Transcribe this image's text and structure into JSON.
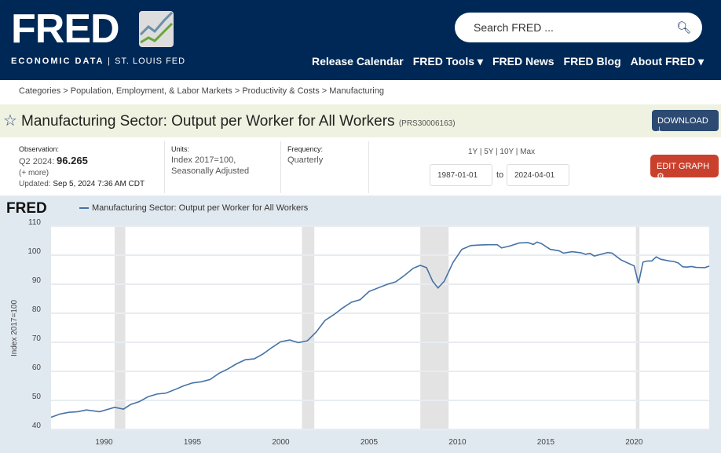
{
  "header": {
    "logo": "FRED",
    "tagline_left": "ECONOMIC DATA",
    "tagline_sep": "|",
    "tagline_right": "ST. LOUIS FED",
    "search_placeholder": "Search FRED ...",
    "nav": [
      "Release Calendar",
      "FRED Tools ▾",
      "FRED News",
      "FRED Blog",
      "About FRED ▾"
    ]
  },
  "breadcrumb": "Categories > Population, Employment, & Labor Markets > Productivity & Costs > Manufacturing",
  "series": {
    "title": "Manufacturing Sector: Output per Worker for All Workers",
    "id": "(PRS30006163)",
    "download": "DOWNLOAD ⤓",
    "edit_graph": "EDIT GRAPH ⚙"
  },
  "meta": {
    "obs_label": "Observation:",
    "obs_period": "Q2 2024:",
    "obs_value": "96.265",
    "more": "(+ more)",
    "updated_label": "Updated:",
    "updated": "Sep 5, 2024 7:36 AM CDT",
    "units_label": "Units:",
    "units1": "Index 2017=100,",
    "units2": "Seasonally Adjusted",
    "freq_label": "Frequency:",
    "freq": "Quarterly",
    "range_links": "1Y | 5Y | 10Y | Max",
    "start": "1987-01-01",
    "to": "to",
    "end": "2024-04-01"
  },
  "chart_data": {
    "type": "line",
    "legend": "Manufacturing Sector: Output per Worker for All Workers",
    "ylabel": "Index 2017=100",
    "xlim": [
      1987,
      2024.25
    ],
    "ylim": [
      40,
      110
    ],
    "yticks": [
      40,
      50,
      60,
      70,
      80,
      90,
      100,
      110
    ],
    "xticks": [
      1990,
      1995,
      2000,
      2005,
      2010,
      2015,
      2020
    ],
    "grid": true,
    "line_color": "#4572a7",
    "recessions": [
      [
        1990.6,
        1991.2
      ],
      [
        2001.2,
        2001.9
      ],
      [
        2007.9,
        2009.5
      ],
      [
        2020.1,
        2020.3
      ]
    ],
    "points": [
      [
        1987,
        44.2
      ],
      [
        1987.5,
        45.3
      ],
      [
        1988,
        45.9
      ],
      [
        1988.5,
        46.1
      ],
      [
        1989,
        46.7
      ],
      [
        1989.75,
        46.1
      ],
      [
        1990.25,
        47.0
      ],
      [
        1990.6,
        47.6
      ],
      [
        1991.1,
        47.0
      ],
      [
        1991.5,
        48.6
      ],
      [
        1992,
        49.6
      ],
      [
        1992.5,
        51.3
      ],
      [
        1993,
        52.2
      ],
      [
        1993.5,
        52.5
      ],
      [
        1994,
        53.7
      ],
      [
        1994.5,
        55.0
      ],
      [
        1995,
        56.0
      ],
      [
        1995.5,
        56.4
      ],
      [
        1996,
        57.2
      ],
      [
        1996.5,
        59.3
      ],
      [
        1997,
        60.8
      ],
      [
        1997.5,
        62.6
      ],
      [
        1998,
        64.0
      ],
      [
        1998.5,
        64.3
      ],
      [
        1999,
        66.0
      ],
      [
        1999.5,
        68.2
      ],
      [
        2000,
        70.2
      ],
      [
        2000.5,
        70.8
      ],
      [
        2001,
        69.9
      ],
      [
        2001.5,
        70.5
      ],
      [
        2002,
        73.5
      ],
      [
        2002.5,
        77.5
      ],
      [
        2003,
        79.5
      ],
      [
        2003.5,
        81.8
      ],
      [
        2004,
        83.8
      ],
      [
        2004.5,
        84.7
      ],
      [
        2005,
        87.5
      ],
      [
        2005.5,
        88.7
      ],
      [
        2006,
        89.9
      ],
      [
        2006.5,
        90.8
      ],
      [
        2007,
        93.0
      ],
      [
        2007.5,
        95.5
      ],
      [
        2007.9,
        96.5
      ],
      [
        2008.25,
        95.7
      ],
      [
        2008.6,
        91.0
      ],
      [
        2008.9,
        88.7
      ],
      [
        2009.25,
        91.0
      ],
      [
        2009.75,
        97.5
      ],
      [
        2010.25,
        102.0
      ],
      [
        2010.75,
        103.3
      ],
      [
        2011.25,
        103.5
      ],
      [
        2011.75,
        103.6
      ],
      [
        2012.25,
        103.6
      ],
      [
        2012.5,
        102.5
      ],
      [
        2013,
        103.2
      ],
      [
        2013.5,
        104.2
      ],
      [
        2014,
        104.3
      ],
      [
        2014.3,
        103.7
      ],
      [
        2014.5,
        104.5
      ],
      [
        2014.75,
        104.0
      ],
      [
        2015.25,
        102.0
      ],
      [
        2015.75,
        101.5
      ],
      [
        2016,
        100.7
      ],
      [
        2016.5,
        101.2
      ],
      [
        2017,
        100.8
      ],
      [
        2017.25,
        100.3
      ],
      [
        2017.5,
        100.6
      ],
      [
        2017.75,
        99.7
      ],
      [
        2018,
        100.1
      ],
      [
        2018.5,
        100.9
      ],
      [
        2018.75,
        100.7
      ],
      [
        2019.25,
        98.4
      ],
      [
        2019.75,
        97.0
      ],
      [
        2020,
        96.3
      ],
      [
        2020.25,
        90.3
      ],
      [
        2020.5,
        97.6
      ],
      [
        2020.75,
        98.0
      ],
      [
        2021,
        98.0
      ],
      [
        2021.25,
        99.4
      ],
      [
        2021.5,
        98.6
      ],
      [
        2022,
        98.0
      ],
      [
        2022.25,
        97.8
      ],
      [
        2022.5,
        97.3
      ],
      [
        2022.75,
        96.0
      ],
      [
        2023,
        95.9
      ],
      [
        2023.25,
        96.1
      ],
      [
        2023.5,
        95.8
      ],
      [
        2024,
        95.7
      ],
      [
        2024.25,
        96.265
      ]
    ]
  }
}
